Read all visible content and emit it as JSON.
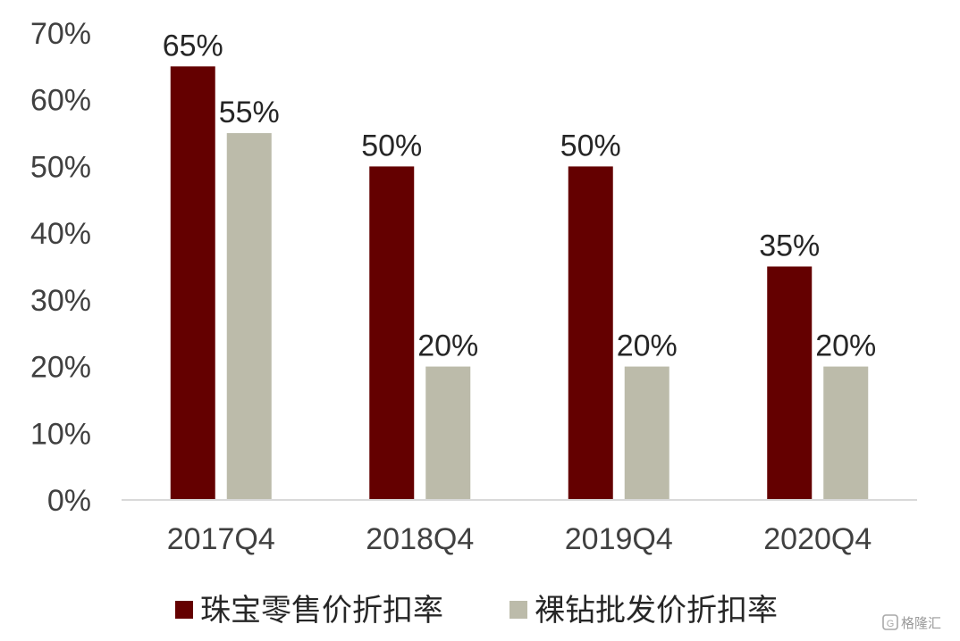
{
  "chart_data": {
    "type": "bar",
    "categories": [
      "2017Q4",
      "2018Q4",
      "2019Q4",
      "2020Q4"
    ],
    "series": [
      {
        "name": "珠宝零售价折扣率",
        "values": [
          65,
          50,
          50,
          35
        ],
        "labels": [
          "65%",
          "50%",
          "50%",
          "35%"
        ],
        "color": "#640000"
      },
      {
        "name": "裸钻批发价折扣率",
        "values": [
          55,
          20,
          20,
          20
        ],
        "labels": [
          "55%",
          "20%",
          "20%",
          "20%"
        ],
        "color": "#BCBBAA"
      }
    ],
    "ylim": [
      0,
      70
    ],
    "yticks": [
      0,
      10,
      20,
      30,
      40,
      50,
      60,
      70
    ],
    "ytick_labels": [
      "0%",
      "10%",
      "20%",
      "30%",
      "40%",
      "50%",
      "60%",
      "70%"
    ],
    "grid": false,
    "legend_position": "bottom",
    "title": "",
    "xlabel": "",
    "ylabel": ""
  },
  "watermark": {
    "text": "格隆汇",
    "icon": "glh-logo-icon"
  }
}
